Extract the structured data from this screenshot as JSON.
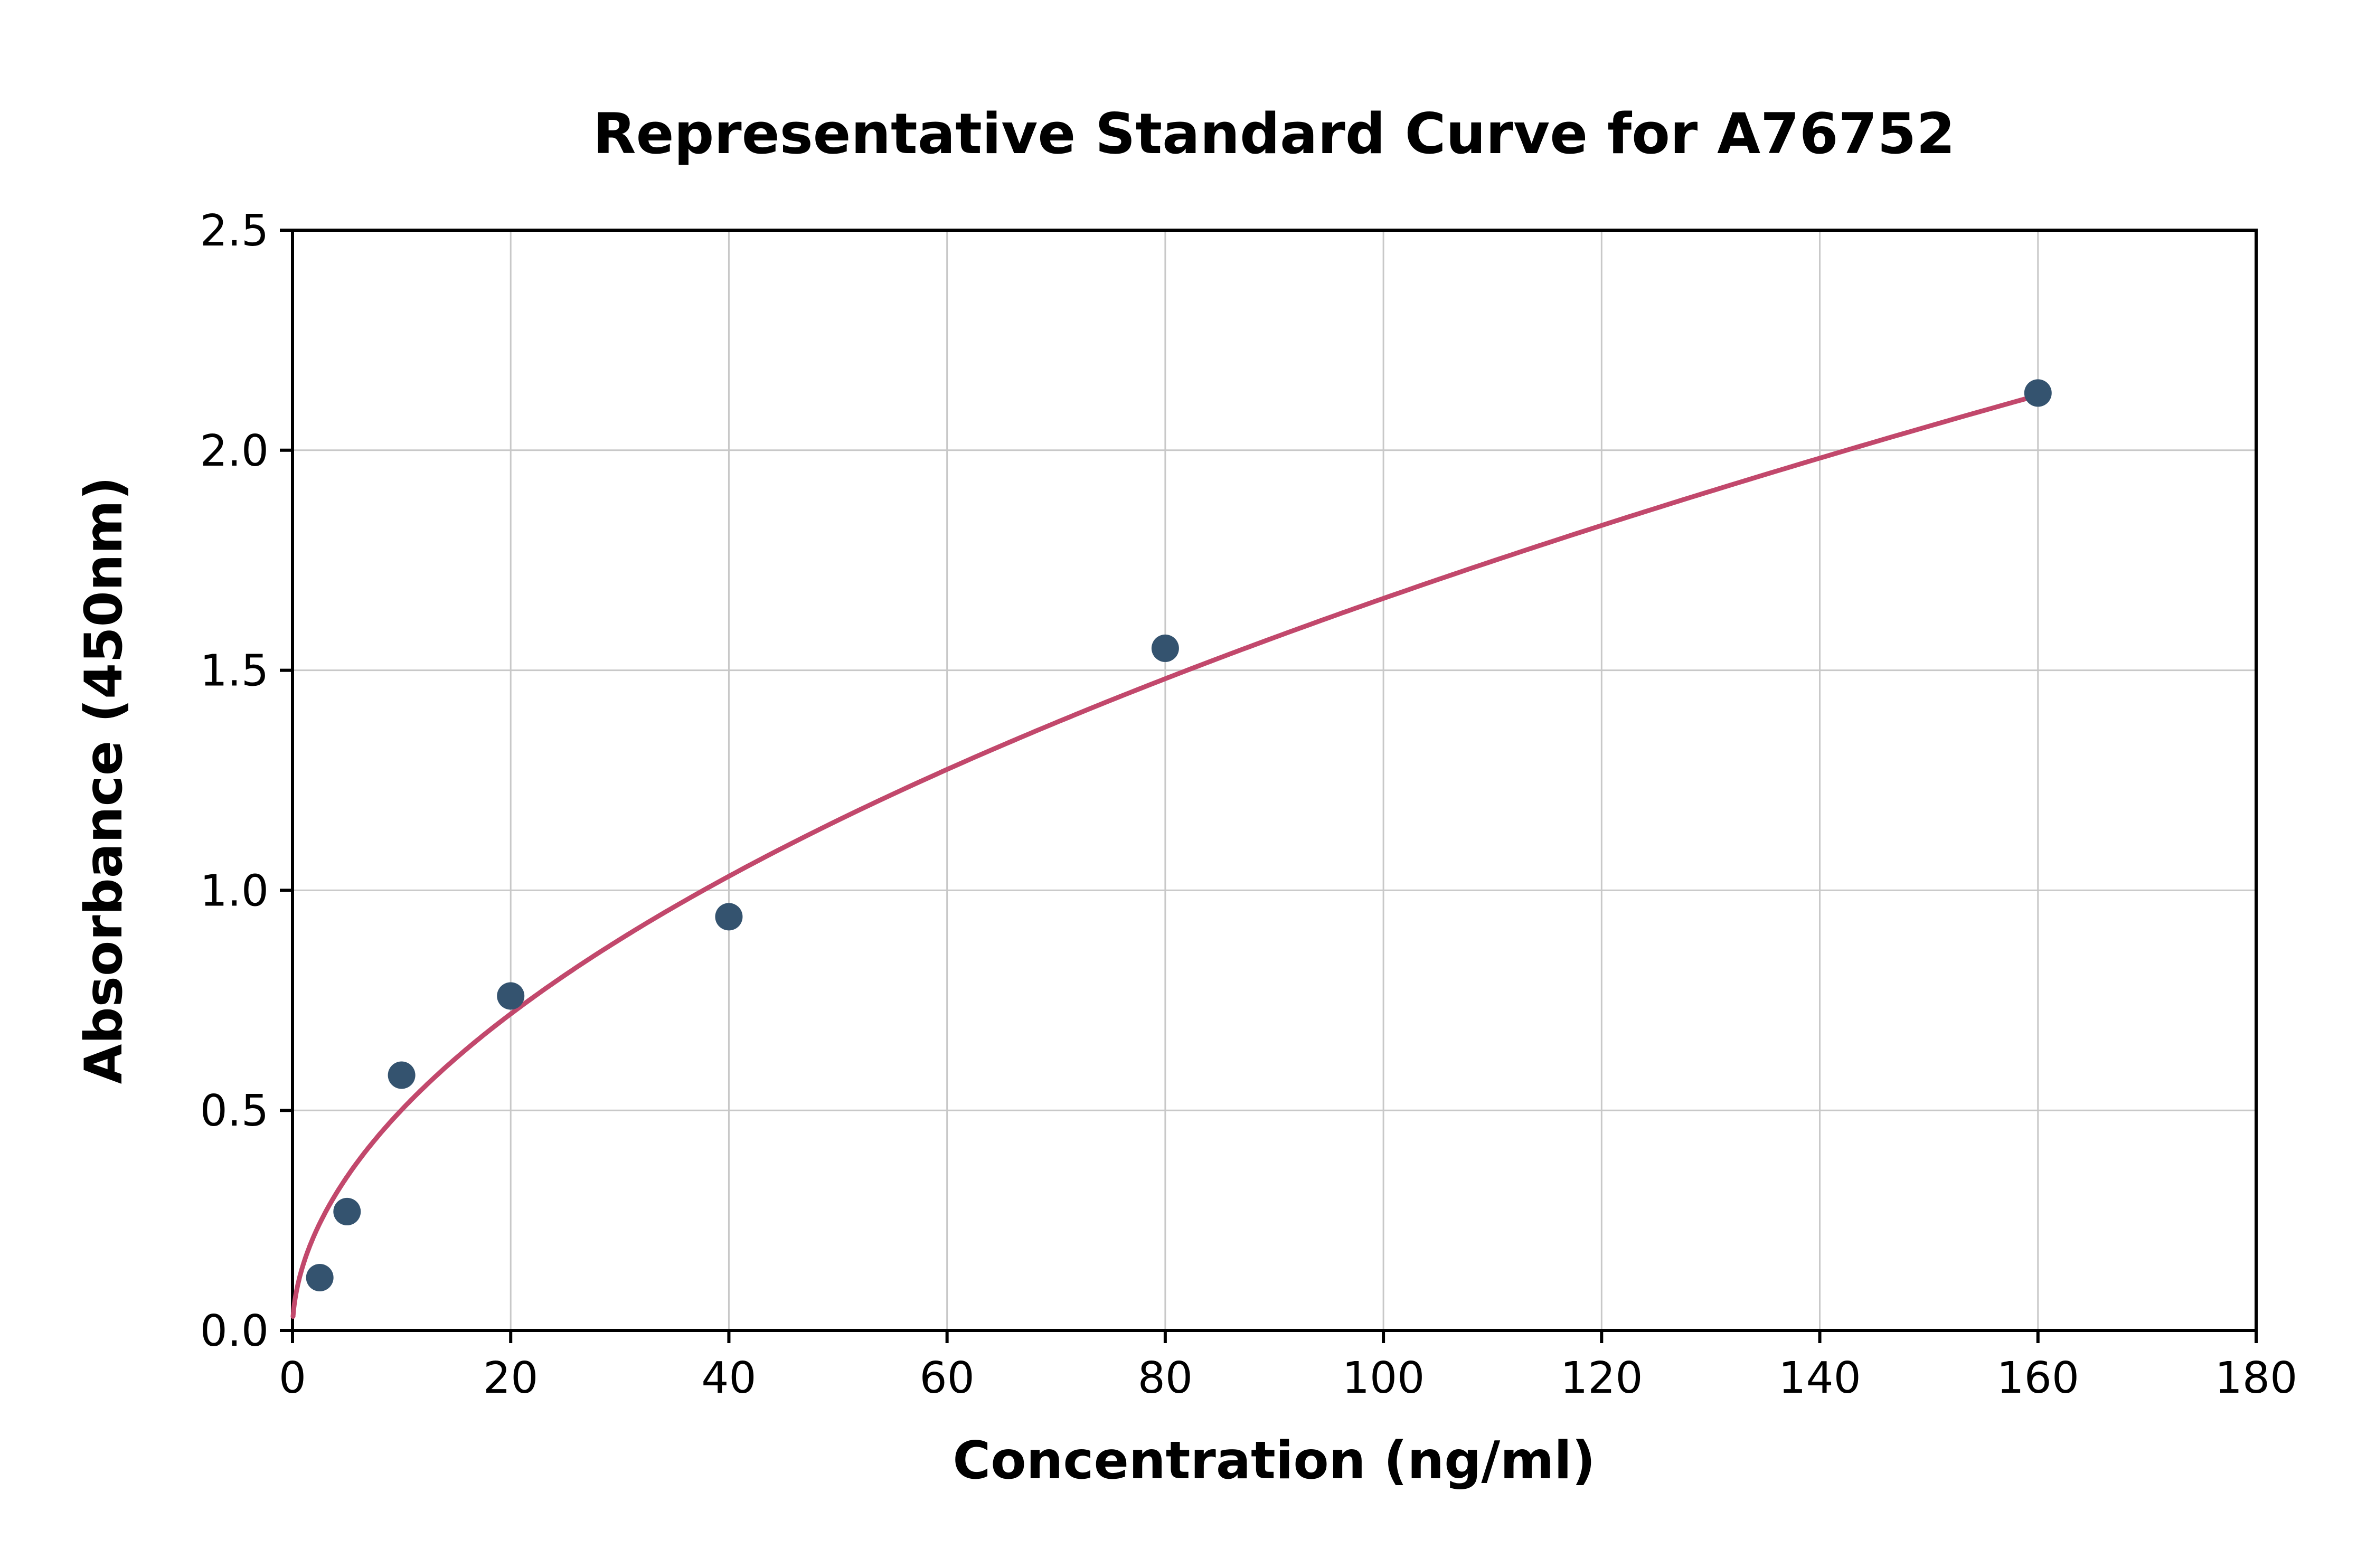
{
  "chart_data": {
    "type": "scatter",
    "title": "Representative Standard Curve for A76752",
    "xlabel": "Concentration (ng/ml)",
    "ylabel": "Absorbance (450nm)",
    "xlim": [
      0,
      180
    ],
    "ylim": [
      0,
      2.5
    ],
    "xticks": [
      0,
      20,
      40,
      60,
      80,
      100,
      120,
      140,
      160,
      180
    ],
    "xtick_labels": [
      "0",
      "20",
      "40",
      "60",
      "80",
      "100",
      "120",
      "140",
      "160",
      "180"
    ],
    "yticks": [
      0,
      0.5,
      1,
      1.5,
      2,
      2.5
    ],
    "ytick_labels": [
      "0.0",
      "0.5",
      "1.0",
      "1.5",
      "2.0",
      "2.5"
    ],
    "grid": true,
    "legend": "none",
    "points": [
      {
        "x": 2.5,
        "y": 0.12
      },
      {
        "x": 5,
        "y": 0.27
      },
      {
        "x": 10,
        "y": 0.58
      },
      {
        "x": 20,
        "y": 0.76
      },
      {
        "x": 40,
        "y": 0.94
      },
      {
        "x": 80,
        "y": 1.55
      },
      {
        "x": 160,
        "y": 2.13
      }
    ],
    "fit": {
      "type": "power",
      "a": 0.151,
      "b": 0.521,
      "x_start": 0.05,
      "x_end": 160
    },
    "colors": {
      "point": "#34536f",
      "curve": "#c2486c",
      "grid": "#c8c8c8",
      "axis": "#000000",
      "text": "#000000",
      "background": "#ffffff"
    }
  }
}
